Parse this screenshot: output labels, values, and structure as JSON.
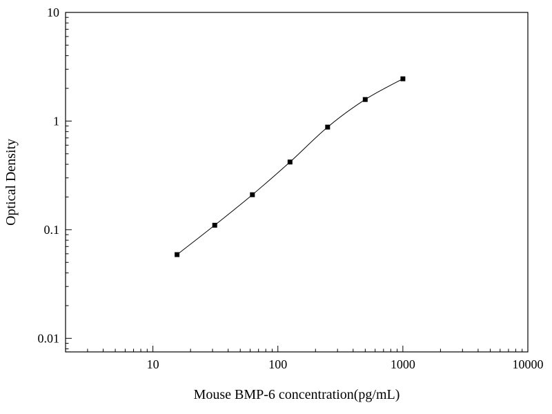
{
  "page": {
    "background_color": "#ffffff",
    "foreground_color": "#000000"
  },
  "chart_data": {
    "type": "line",
    "title": "",
    "xlabel": "Mouse BMP-6 concentration(pg/mL)",
    "ylabel": "Optical Density",
    "xscale": "log",
    "yscale": "log",
    "xlim": [
      2,
      10000
    ],
    "ylim": [
      0.0075,
      10
    ],
    "grid": false,
    "legend": null,
    "marker": "square",
    "marker_color": "#000000",
    "line_color": "#000000",
    "x": [
      15.6,
      31.25,
      62.5,
      125,
      250,
      500,
      1000
    ],
    "y": [
      0.059,
      0.11,
      0.21,
      0.42,
      0.88,
      1.58,
      2.45
    ],
    "x_major_ticks": [
      10,
      100,
      1000,
      10000
    ],
    "x_tick_labels": [
      "10",
      "100",
      "1000",
      "10000"
    ],
    "y_major_ticks": [
      0.01,
      0.1,
      1,
      10
    ],
    "y_tick_labels": [
      "0.01",
      "0.1",
      "1",
      "10"
    ]
  }
}
